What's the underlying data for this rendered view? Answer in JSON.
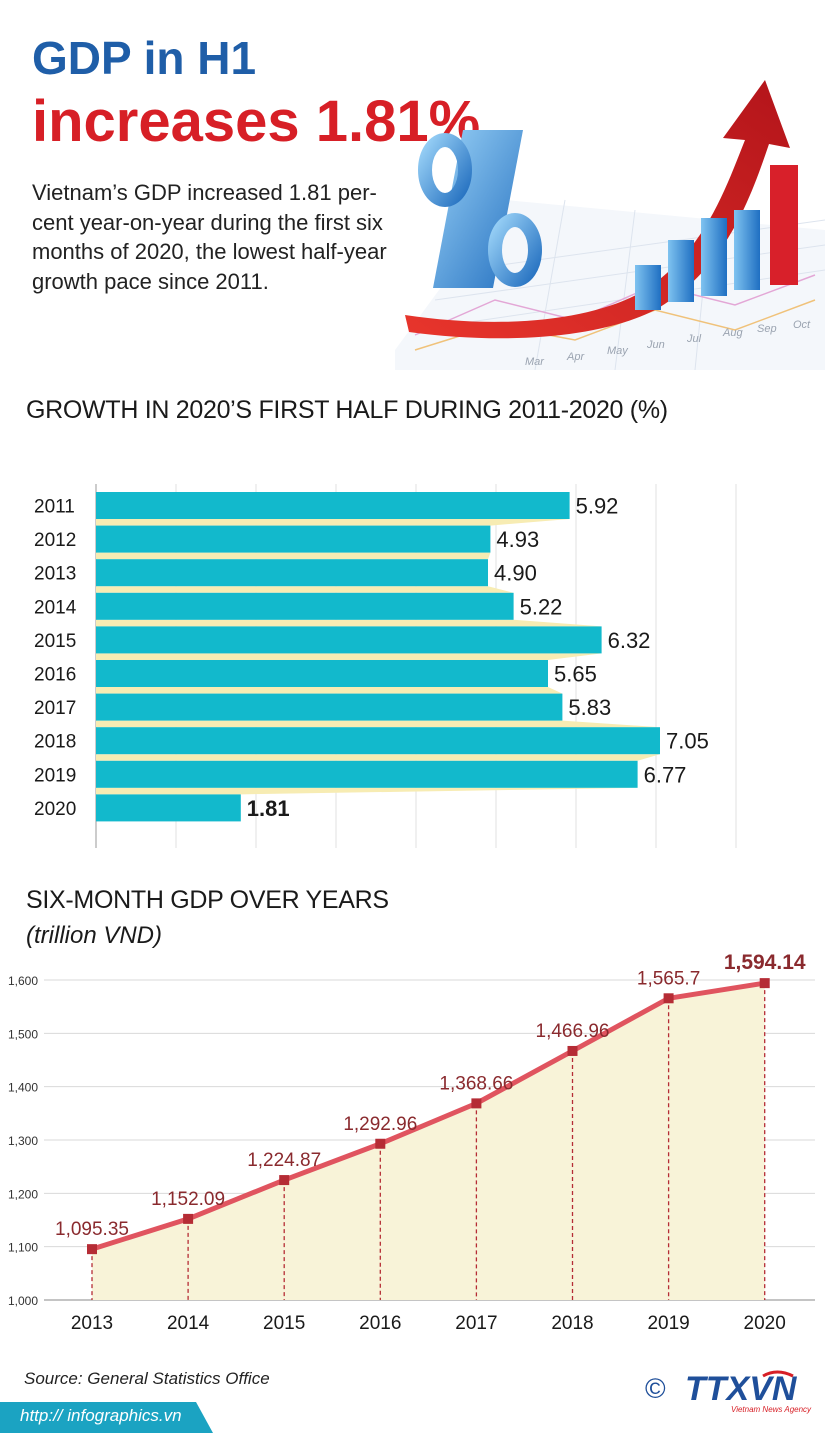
{
  "header": {
    "title_line1": "GDP in H1",
    "title_line2": "increases 1.81%",
    "intro": "Vietnam’s GDP increased 1.81 per- cent year-on-year during the first six months of 2020, the lowest half-year growth pace since 2011."
  },
  "hero_illustration": {
    "percent_symbol": "%",
    "month_labels": [
      "Mar",
      "Apr",
      "May",
      "Jun",
      "Jul",
      "Aug",
      "Sep",
      "Oct"
    ]
  },
  "chart_data": [
    {
      "type": "bar",
      "orientation": "horizontal",
      "title": "GROWTH IN 2020’S FIRST HALF DURING 2011-2020 (%)",
      "categories": [
        "2011",
        "2012",
        "2013",
        "2014",
        "2015",
        "2016",
        "2017",
        "2018",
        "2019",
        "2020"
      ],
      "values": [
        5.92,
        4.93,
        4.9,
        5.22,
        6.32,
        5.65,
        5.83,
        7.05,
        6.77,
        1.81
      ],
      "value_labels": [
        "5.92",
        "4.93",
        "4.90",
        "5.22",
        "6.32",
        "5.65",
        "5.83",
        "7.05",
        "6.77",
        "1.81"
      ],
      "highlight": "2020",
      "xlim": [
        0,
        8
      ],
      "grid": true,
      "colors": {
        "bar": "#12b9cc",
        "band": "#f7ecb3"
      }
    },
    {
      "type": "area",
      "title": "SIX-MONTH GDP OVER YEARS",
      "subtitle": "(trillion VND)",
      "x": [
        "2013",
        "2014",
        "2015",
        "2016",
        "2017",
        "2018",
        "2019",
        "2020"
      ],
      "values": [
        1095.35,
        1152.09,
        1224.87,
        1292.96,
        1368.66,
        1466.96,
        1565.7,
        1594.14
      ],
      "value_labels": [
        "1,095.35",
        "1,152.09",
        "1,224.87",
        "1,292.96",
        "1,368.66",
        "1,466.96",
        "1,565.7",
        "1,594.14"
      ],
      "ylim": [
        1000,
        1600
      ],
      "yticks": [
        1000,
        1100,
        1200,
        1300,
        1400,
        1500,
        1600
      ],
      "ytick_labels": [
        "1,000",
        "1,100",
        "1,200",
        "1,300",
        "1,400",
        "1,500",
        "1,600"
      ],
      "grid": true,
      "colors": {
        "line": "#e0545f",
        "marker": "#b52c35",
        "fill": "#f8f3d8",
        "label": "#8a2a2e"
      }
    }
  ],
  "footer": {
    "source": "Source: General Statistics Office",
    "url": "http:// infographics.vn",
    "copyright": "©",
    "logo_text": "TTXVN",
    "logo_subtext": "Vietnam News Agency"
  }
}
